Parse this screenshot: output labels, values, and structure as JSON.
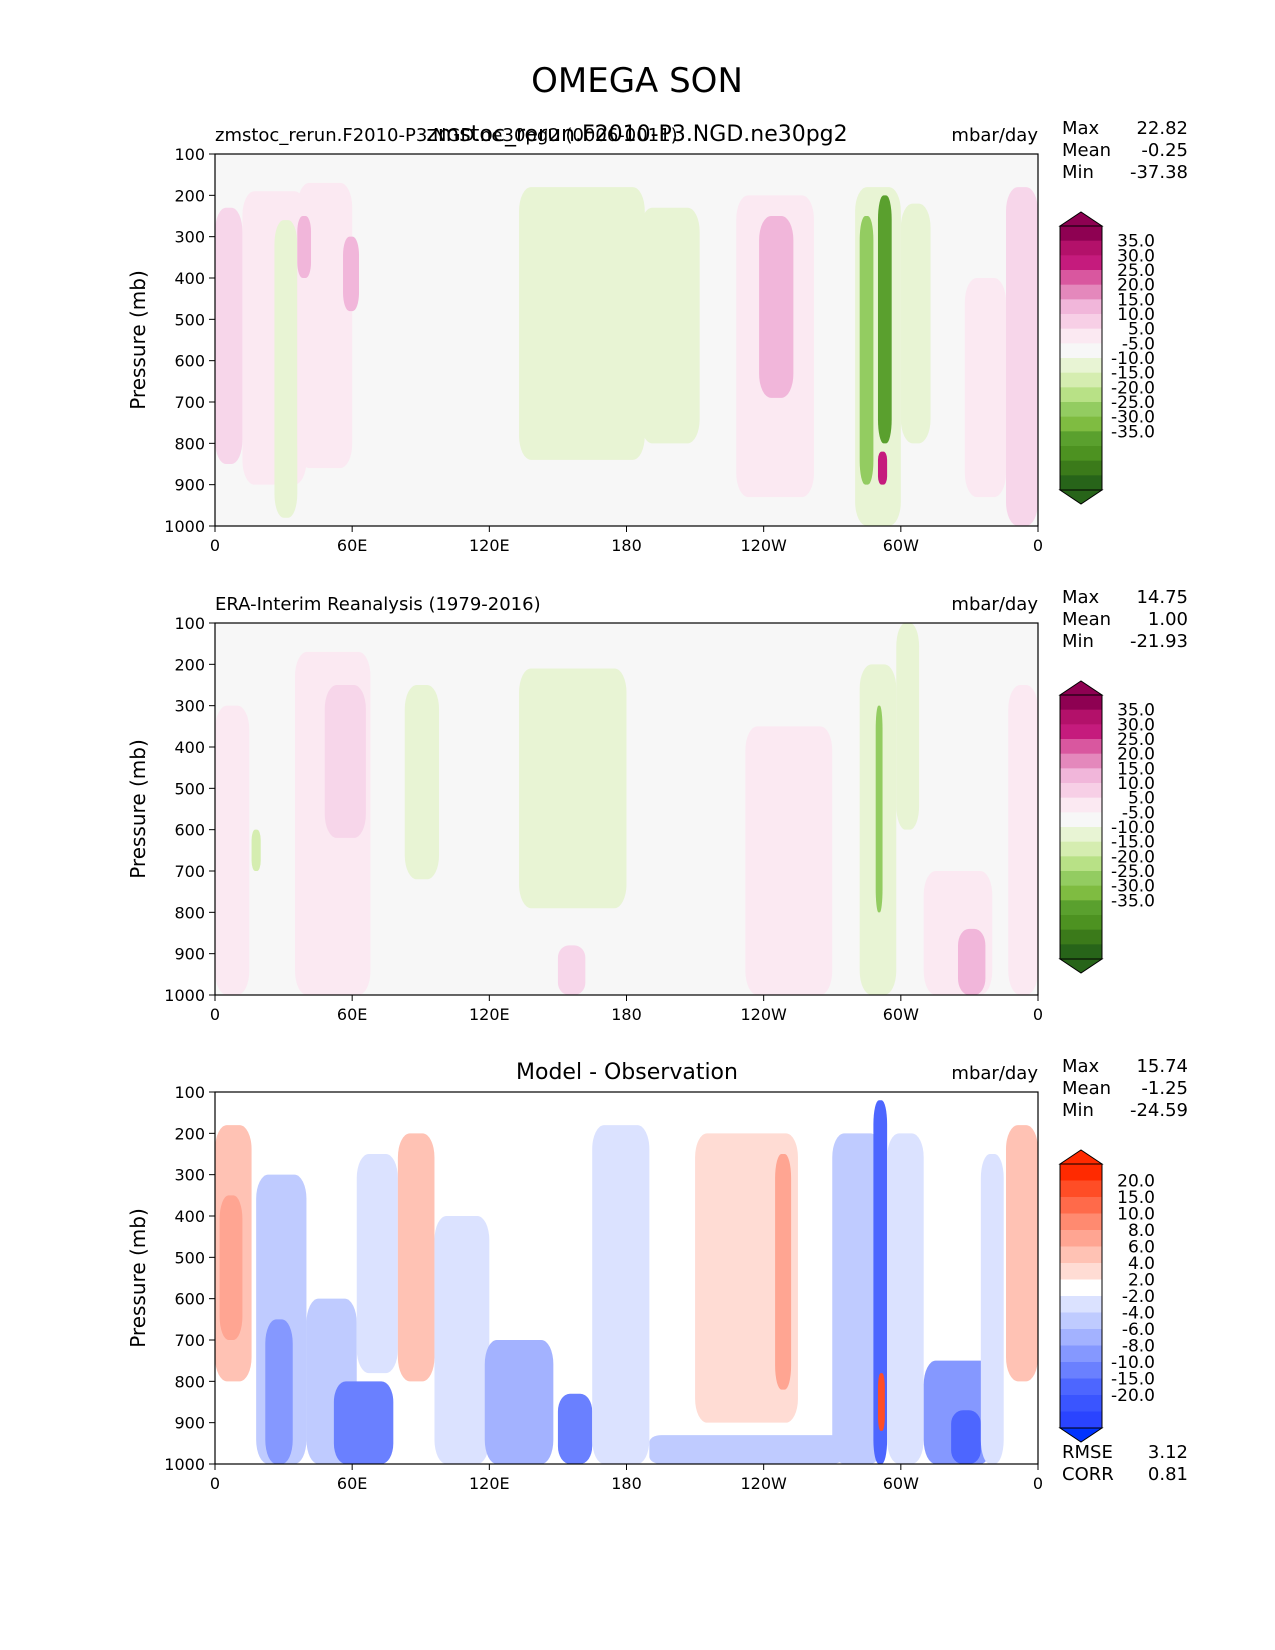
{
  "figure_title": "OMEGA SON",
  "chart_data": [
    {
      "type": "heatmap",
      "title": "zmstoc_rerun.F2010-P3.NGD.ne30pg2",
      "subtitle_left": "zmstoc_rerun.F2010-P3.NGD.ne30pg2 (0006-0011)",
      "units": "mbar/day",
      "ylabel": "Pressure (mb)",
      "yticks": [
        "100",
        "200",
        "300",
        "400",
        "500",
        "600",
        "700",
        "800",
        "900",
        "1000"
      ],
      "xticks": [
        "0",
        "60E",
        "120E",
        "180",
        "120W",
        "60W",
        "0"
      ],
      "ylim": [
        100,
        1000
      ],
      "xlim": [
        0,
        360
      ],
      "stats": [
        {
          "label": "Max",
          "value": "22.82"
        },
        {
          "label": "Mean",
          "value": "-0.25"
        },
        {
          "label": "Min",
          "value": "-37.38"
        }
      ],
      "colorbar": {
        "labels": [
          "35.0",
          "30.0",
          "25.0",
          "20.0",
          "15.0",
          "10.0",
          "5.0",
          "-5.0",
          "-10.0",
          "-15.0",
          "-20.0",
          "-25.0",
          "-30.0",
          "-35.0"
        ],
        "colors": [
          "#8e0152",
          "#b3116a",
          "#c51b7d",
          "#d9579f",
          "#e488bc",
          "#f1b6da",
          "#f7cfe6",
          "#fbe9f2",
          "#f7f7f7",
          "#e8f4d4",
          "#d5edb0",
          "#b8e186",
          "#93cc61",
          "#7fbc41",
          "#5aa02e",
          "#4d9221",
          "#3b7a1a",
          "#276419"
        ],
        "over_color": "#8e0152",
        "under_color": "#276419"
      },
      "background": "#f7f7f7",
      "features": [
        {
          "lon": [
            0,
            12
          ],
          "p": [
            230,
            850
          ],
          "color": "#f7d6ea"
        },
        {
          "lon": [
            12,
            40
          ],
          "p": [
            190,
            900
          ],
          "color": "#fbe9f2"
        },
        {
          "lon": [
            26,
            36
          ],
          "p": [
            260,
            980
          ],
          "color": "#e8f4d4"
        },
        {
          "lon": [
            36,
            60
          ],
          "p": [
            170,
            860
          ],
          "color": "#fbe9f2"
        },
        {
          "lon": [
            36,
            42
          ],
          "p": [
            250,
            400
          ],
          "color": "#f1b6da"
        },
        {
          "lon": [
            56,
            63
          ],
          "p": [
            300,
            480
          ],
          "color": "#f1b6da"
        },
        {
          "lon": [
            133,
            188
          ],
          "p": [
            180,
            840
          ],
          "color": "#e8f4d4"
        },
        {
          "lon": [
            186,
            212
          ],
          "p": [
            230,
            800
          ],
          "color": "#e8f4d4"
        },
        {
          "lon": [
            228,
            262
          ],
          "p": [
            200,
            930
          ],
          "color": "#fbe9f2"
        },
        {
          "lon": [
            238,
            253
          ],
          "p": [
            250,
            690
          ],
          "color": "#f1b6da"
        },
        {
          "lon": [
            280,
            300
          ],
          "p": [
            180,
            1000
          ],
          "color": "#e8f4d4"
        },
        {
          "lon": [
            282,
            288
          ],
          "p": [
            250,
            900
          ],
          "color": "#93cc61"
        },
        {
          "lon": [
            290,
            296
          ],
          "p": [
            200,
            800
          ],
          "color": "#5aa02e"
        },
        {
          "lon": [
            290,
            294
          ],
          "p": [
            820,
            900
          ],
          "color": "#c51b7d"
        },
        {
          "lon": [
            300,
            313
          ],
          "p": [
            220,
            800
          ],
          "color": "#e8f4d4"
        },
        {
          "lon": [
            328,
            346
          ],
          "p": [
            400,
            930
          ],
          "color": "#fbe9f2"
        },
        {
          "lon": [
            346,
            360
          ],
          "p": [
            180,
            1000
          ],
          "color": "#f7d6ea"
        }
      ]
    },
    {
      "type": "heatmap",
      "title": "ERA-Interim Reanalysis (1979-2016)",
      "units": "mbar/day",
      "ylabel": "Pressure (mb)",
      "yticks": [
        "100",
        "200",
        "300",
        "400",
        "500",
        "600",
        "700",
        "800",
        "900",
        "1000"
      ],
      "xticks": [
        "0",
        "60E",
        "120E",
        "180",
        "120W",
        "60W",
        "0"
      ],
      "ylim": [
        100,
        1000
      ],
      "xlim": [
        0,
        360
      ],
      "stats": [
        {
          "label": "Max",
          "value": "14.75"
        },
        {
          "label": "Mean",
          "value": "1.00"
        },
        {
          "label": "Min",
          "value": "-21.93"
        }
      ],
      "colorbar": {
        "labels": [
          "35.0",
          "30.0",
          "25.0",
          "20.0",
          "15.0",
          "10.0",
          "5.0",
          "-5.0",
          "-10.0",
          "-15.0",
          "-20.0",
          "-25.0",
          "-30.0",
          "-35.0"
        ],
        "colors": [
          "#8e0152",
          "#b3116a",
          "#c51b7d",
          "#d9579f",
          "#e488bc",
          "#f1b6da",
          "#f7cfe6",
          "#fbe9f2",
          "#f7f7f7",
          "#e8f4d4",
          "#d5edb0",
          "#b8e186",
          "#93cc61",
          "#7fbc41",
          "#5aa02e",
          "#4d9221",
          "#3b7a1a",
          "#276419"
        ],
        "over_color": "#8e0152",
        "under_color": "#276419"
      },
      "background": "#f7f7f7",
      "features": [
        {
          "lon": [
            0,
            15
          ],
          "p": [
            300,
            1000
          ],
          "color": "#fbe9f2"
        },
        {
          "lon": [
            16,
            20
          ],
          "p": [
            600,
            700
          ],
          "color": "#d5edb0"
        },
        {
          "lon": [
            35,
            68
          ],
          "p": [
            170,
            1000
          ],
          "color": "#fbe9f2"
        },
        {
          "lon": [
            48,
            66
          ],
          "p": [
            250,
            620
          ],
          "color": "#f7d6ea"
        },
        {
          "lon": [
            83,
            98
          ],
          "p": [
            250,
            720
          ],
          "color": "#e8f4d4"
        },
        {
          "lon": [
            133,
            180
          ],
          "p": [
            210,
            790
          ],
          "color": "#e8f4d4"
        },
        {
          "lon": [
            150,
            162
          ],
          "p": [
            880,
            1000
          ],
          "color": "#f7d6ea"
        },
        {
          "lon": [
            232,
            270
          ],
          "p": [
            350,
            1000
          ],
          "color": "#fbe9f2"
        },
        {
          "lon": [
            282,
            298
          ],
          "p": [
            200,
            1000
          ],
          "color": "#e8f4d4"
        },
        {
          "lon": [
            289,
            292
          ],
          "p": [
            300,
            800
          ],
          "color": "#93cc61"
        },
        {
          "lon": [
            298,
            308
          ],
          "p": [
            100,
            600
          ],
          "color": "#e8f4d4"
        },
        {
          "lon": [
            310,
            340
          ],
          "p": [
            700,
            1000
          ],
          "color": "#fbe9f2"
        },
        {
          "lon": [
            325,
            337
          ],
          "p": [
            840,
            1000
          ],
          "color": "#f1b6da"
        },
        {
          "lon": [
            347,
            360
          ],
          "p": [
            250,
            1000
          ],
          "color": "#fbe9f2"
        }
      ]
    },
    {
      "type": "heatmap",
      "title": "Model - Observation",
      "units": "mbar/day",
      "ylabel": "Pressure (mb)",
      "yticks": [
        "100",
        "200",
        "300",
        "400",
        "500",
        "600",
        "700",
        "800",
        "900",
        "1000"
      ],
      "xticks": [
        "0",
        "60E",
        "120E",
        "180",
        "120W",
        "60W",
        "0"
      ],
      "ylim": [
        100,
        1000
      ],
      "xlim": [
        0,
        360
      ],
      "stats": [
        {
          "label": "Max",
          "value": "15.74"
        },
        {
          "label": "Mean",
          "value": "-1.25"
        },
        {
          "label": "Min",
          "value": "-24.59"
        }
      ],
      "extra_stats": [
        {
          "label": "RMSE",
          "value": "3.12"
        },
        {
          "label": "CORR",
          "value": "0.81"
        }
      ],
      "colorbar": {
        "labels": [
          "20.0",
          "15.0",
          "10.0",
          "8.0",
          "6.0",
          "4.0",
          "2.0",
          "-2.0",
          "-4.0",
          "-6.0",
          "-8.0",
          "-10.0",
          "-15.0",
          "-20.0"
        ],
        "colors": [
          "#ff2a00",
          "#ff4d26",
          "#ff6a4a",
          "#ff8a70",
          "#ffa592",
          "#ffc2b4",
          "#ffdcd4",
          "#ffffff",
          "#dbe2ff",
          "#bfcbff",
          "#a3b2ff",
          "#8598ff",
          "#6a80ff",
          "#4d66ff",
          "#3a55ff",
          "#2a44ff"
        ],
        "over_color": "#ff2a00",
        "under_color": "#0033ff"
      },
      "background": "#ffffff",
      "features": [
        {
          "lon": [
            0,
            16
          ],
          "p": [
            180,
            800
          ],
          "color": "#ffc2b4"
        },
        {
          "lon": [
            2,
            12
          ],
          "p": [
            350,
            700
          ],
          "color": "#ffa592"
        },
        {
          "lon": [
            18,
            40
          ],
          "p": [
            300,
            1000
          ],
          "color": "#bfcbff"
        },
        {
          "lon": [
            22,
            34
          ],
          "p": [
            650,
            1000
          ],
          "color": "#8598ff"
        },
        {
          "lon": [
            40,
            62
          ],
          "p": [
            600,
            1000
          ],
          "color": "#bfcbff"
        },
        {
          "lon": [
            52,
            78
          ],
          "p": [
            800,
            1000
          ],
          "color": "#6a80ff"
        },
        {
          "lon": [
            62,
            80
          ],
          "p": [
            250,
            780
          ],
          "color": "#dbe2ff"
        },
        {
          "lon": [
            80,
            96
          ],
          "p": [
            200,
            800
          ],
          "color": "#ffc2b4"
        },
        {
          "lon": [
            96,
            120
          ],
          "p": [
            400,
            1000
          ],
          "color": "#dbe2ff"
        },
        {
          "lon": [
            118,
            148
          ],
          "p": [
            700,
            1000
          ],
          "color": "#a3b2ff"
        },
        {
          "lon": [
            150,
            165
          ],
          "p": [
            830,
            1000
          ],
          "color": "#6a80ff"
        },
        {
          "lon": [
            165,
            190
          ],
          "p": [
            180,
            1000
          ],
          "color": "#dbe2ff"
        },
        {
          "lon": [
            210,
            255
          ],
          "p": [
            200,
            900
          ],
          "color": "#ffdcd4"
        },
        {
          "lon": [
            245,
            252
          ],
          "p": [
            250,
            820
          ],
          "color": "#ffa592"
        },
        {
          "lon": [
            190,
            275
          ],
          "p": [
            930,
            1000
          ],
          "color": "#bfcbff"
        },
        {
          "lon": [
            270,
            292
          ],
          "p": [
            200,
            1000
          ],
          "color": "#bfcbff"
        },
        {
          "lon": [
            288,
            294
          ],
          "p": [
            120,
            1000
          ],
          "color": "#4d66ff"
        },
        {
          "lon": [
            290,
            293
          ],
          "p": [
            780,
            920
          ],
          "color": "#ff4d26"
        },
        {
          "lon": [
            294,
            310
          ],
          "p": [
            200,
            1000
          ],
          "color": "#dbe2ff"
        },
        {
          "lon": [
            310,
            340
          ],
          "p": [
            750,
            1000
          ],
          "color": "#8598ff"
        },
        {
          "lon": [
            322,
            335
          ],
          "p": [
            870,
            1000
          ],
          "color": "#4d66ff"
        },
        {
          "lon": [
            335,
            345
          ],
          "p": [
            250,
            1000
          ],
          "color": "#dbe2ff"
        },
        {
          "lon": [
            346,
            360
          ],
          "p": [
            180,
            800
          ],
          "color": "#ffc2b4"
        }
      ]
    }
  ]
}
